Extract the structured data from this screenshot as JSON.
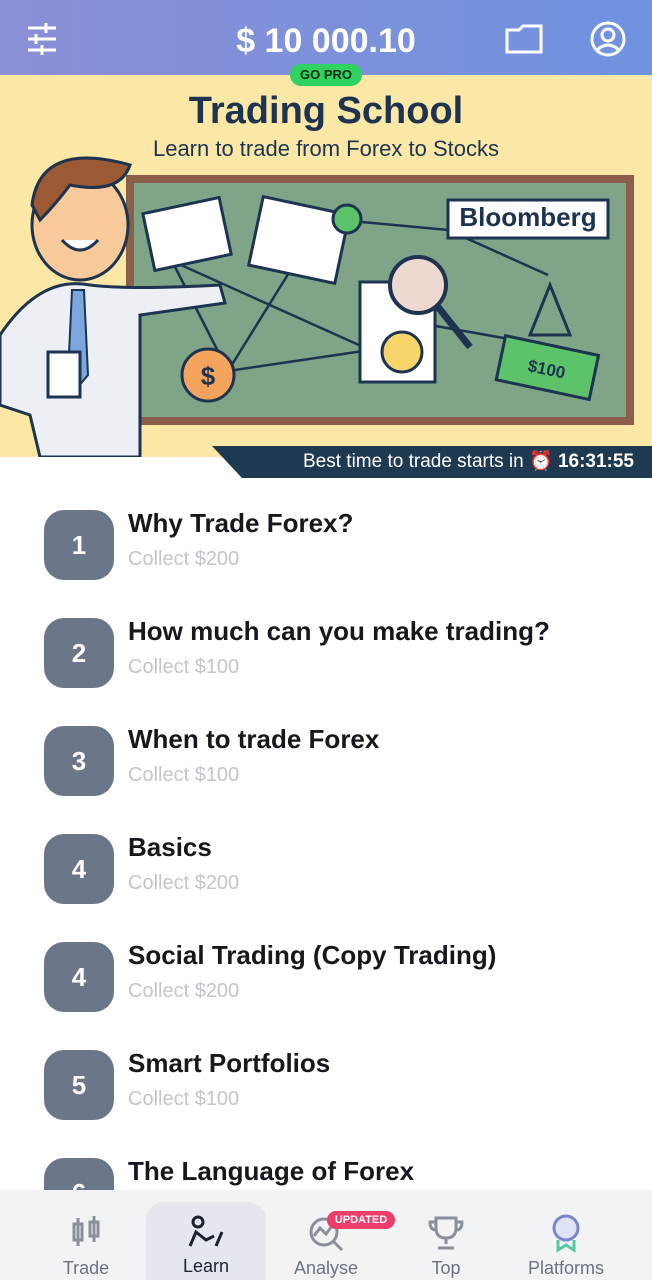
{
  "header": {
    "balance": "$ 10 000.10",
    "badge": "GO PRO"
  },
  "banner": {
    "title": "Trading School",
    "subtitle": "Learn to trade from Forex to Stocks",
    "labels": [
      "Bloomberg",
      "$100",
      "$"
    ],
    "timer_text": "Best time to trade starts in",
    "timer_icon": "⏰",
    "timer": "16:31:55"
  },
  "lessons": [
    {
      "number": "1",
      "title": "Why Trade Forex?",
      "reward": "Collect $200"
    },
    {
      "number": "2",
      "title": "How much can you make trading?",
      "reward": "Collect $100"
    },
    {
      "number": "3",
      "title": "When to trade Forex",
      "reward": "Collect $100"
    },
    {
      "number": "4",
      "title": "Basics",
      "reward": "Collect $200"
    },
    {
      "number": "4",
      "title": "Social Trading (Copy Trading)",
      "reward": "Collect $200"
    },
    {
      "number": "5",
      "title": "Smart Portfolios",
      "reward": "Collect $100"
    },
    {
      "number": "6",
      "title": "The Language of Forex"
    }
  ],
  "nav": {
    "items": [
      {
        "label": "Trade"
      },
      {
        "label": "Learn"
      },
      {
        "label": "Analyse"
      },
      {
        "label": "Top"
      },
      {
        "label": "Platforms"
      }
    ],
    "analyse_badge": "UPDATED"
  }
}
